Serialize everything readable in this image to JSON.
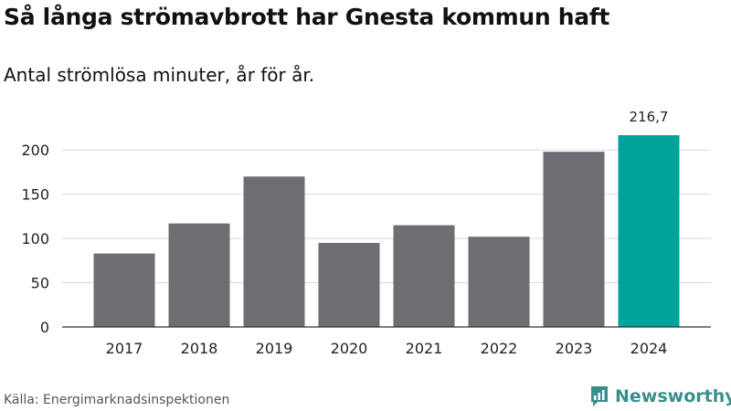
{
  "title": "Så långa strömavbrott har Gnesta kommun haft",
  "subtitle": "Antal strömlösa minuter, år för år.",
  "source": "Källa: Energimarknadsinspektionen",
  "brand": {
    "name": "Newsworthy",
    "icon": "newsworthy-logo-icon",
    "color": "#3a8f8c"
  },
  "chart_data": {
    "type": "bar",
    "categories": [
      "2017",
      "2018",
      "2019",
      "2020",
      "2021",
      "2022",
      "2023",
      "2024"
    ],
    "values": [
      83,
      117,
      170,
      95,
      115,
      102,
      198,
      216.7
    ],
    "ylim": [
      0,
      225
    ],
    "yticks": [
      0,
      50,
      100,
      150,
      200
    ],
    "ytick_labels": [
      "0",
      "50",
      "100",
      "150",
      "200"
    ],
    "grid": true,
    "bar_color": "#6e6d72",
    "highlight_color": "#00a39a",
    "highlight_index": 7,
    "data_labels": [
      {
        "index": 7,
        "text": "216,7"
      }
    ]
  }
}
